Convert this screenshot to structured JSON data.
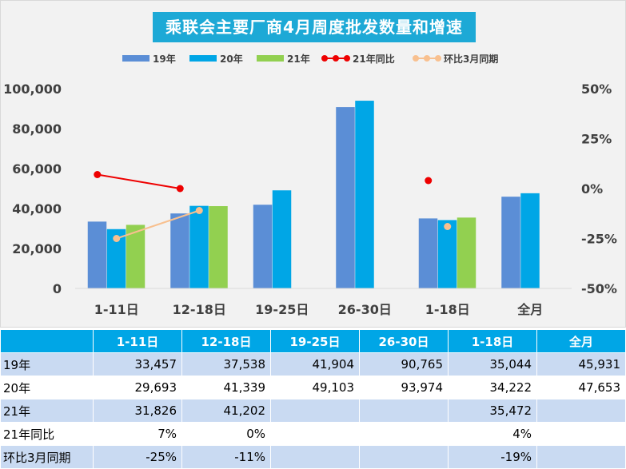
{
  "title": "乘联会主要厂商4月周度批发数量和增速",
  "legend": {
    "s19": "19年",
    "s20": "20年",
    "s21": "21年",
    "yoy": "21年同比",
    "mom": "环比3月同期"
  },
  "colors": {
    "s19": "#5b8ed6",
    "s20": "#00a6e6",
    "s21": "#92d050",
    "yoy": "#ee0000",
    "mom": "#f8c08f"
  },
  "chart_data": {
    "type": "bar",
    "categories": [
      "1-11日",
      "12-18日",
      "19-25日",
      "26-30日",
      "1-18日",
      "全月"
    ],
    "series": [
      {
        "name": "19年",
        "values": [
          33457,
          37538,
          41904,
          90765,
          35044,
          45931
        ]
      },
      {
        "name": "20年",
        "values": [
          29693,
          41339,
          49103,
          93974,
          34222,
          47653
        ]
      },
      {
        "name": "21年",
        "values": [
          31826,
          41202,
          null,
          null,
          35472,
          null
        ]
      }
    ],
    "line_series": [
      {
        "name": "21年同比",
        "values": [
          0.07,
          0.0,
          null,
          null,
          0.04,
          null
        ],
        "axis": "right"
      },
      {
        "name": "环比3月同期",
        "values": [
          -0.25,
          -0.11,
          null,
          null,
          -0.19,
          null
        ],
        "axis": "right"
      }
    ],
    "ylim": [
      0,
      100000
    ],
    "yticks": [
      "0",
      "20,000",
      "40,000",
      "60,000",
      "80,000",
      "100,000"
    ],
    "ylim_right": [
      -0.5,
      0.5
    ],
    "yticks_right": [
      "-50%",
      "-25%",
      "0%",
      "25%",
      "50%"
    ],
    "grid": false,
    "legend_position": "top"
  },
  "table": {
    "headers": [
      "",
      "1-11日",
      "12-18日",
      "19-25日",
      "26-30日",
      "1-18日",
      "全月"
    ],
    "rows": [
      {
        "label": "19年",
        "cells": [
          "33,457",
          "37,538",
          "41,904",
          "90,765",
          "35,044",
          "45,931"
        ]
      },
      {
        "label": "20年",
        "cells": [
          "29,693",
          "41,339",
          "49,103",
          "93,974",
          "34,222",
          "47,653"
        ]
      },
      {
        "label": "21年",
        "cells": [
          "31,826",
          "41,202",
          "",
          "",
          "35,472",
          ""
        ]
      },
      {
        "label": "21年同比",
        "cells": [
          "7%",
          "0%",
          "",
          "",
          "4%",
          ""
        ]
      },
      {
        "label": "环比3月同期",
        "cells": [
          "-25%",
          "-11%",
          "",
          "",
          "-19%",
          ""
        ]
      }
    ]
  }
}
